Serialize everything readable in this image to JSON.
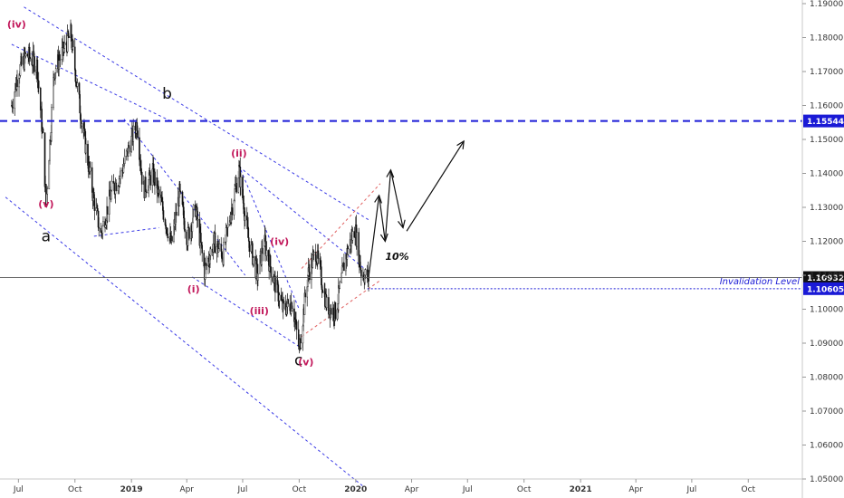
{
  "chart_data": {
    "type": "candlestick",
    "symbol_hint": "EURUSD",
    "y_axis": {
      "min": 1.05,
      "max": 1.19,
      "ticks": [
        "1.19000",
        "1.18000",
        "1.17000",
        "1.16000",
        "1.15000",
        "1.14000",
        "1.13000",
        "1.12000",
        "1.11000",
        "1.10000",
        "1.09000",
        "1.08000",
        "1.07000",
        "1.06000",
        "1.05000"
      ],
      "position": "right"
    },
    "x_axis": {
      "labels": [
        "Jul",
        "Oct",
        "2019",
        "Apr",
        "Jul",
        "Oct",
        "2020",
        "Apr",
        "Jul",
        "Oct",
        "2021",
        "Apr",
        "Jul",
        "Oct"
      ],
      "bold_labels": [
        "2019",
        "2020",
        "2021"
      ],
      "start": "2018-06",
      "end": "2021-12"
    },
    "price_series": [
      [
        "2018-06-20",
        1.16
      ],
      [
        "2018-07-01",
        1.17
      ],
      [
        "2018-07-15",
        1.175
      ],
      [
        "2018-07-31",
        1.172
      ],
      [
        "2018-08-10",
        1.15
      ],
      [
        "2018-08-15",
        1.131
      ],
      [
        "2018-08-28",
        1.17
      ],
      [
        "2018-09-24",
        1.181
      ],
      [
        "2018-10-10",
        1.158
      ],
      [
        "2018-10-31",
        1.133
      ],
      [
        "2018-11-12",
        1.122
      ],
      [
        "2018-11-30",
        1.135
      ],
      [
        "2018-12-15",
        1.14
      ],
      [
        "2019-01-10",
        1.155
      ],
      [
        "2019-01-20",
        1.135
      ],
      [
        "2019-02-05",
        1.14
      ],
      [
        "2019-02-20",
        1.13
      ],
      [
        "2019-03-07",
        1.119
      ],
      [
        "2019-03-20",
        1.134
      ],
      [
        "2019-04-02",
        1.121
      ],
      [
        "2019-04-15",
        1.13
      ],
      [
        "2019-04-30",
        1.111
      ],
      [
        "2019-05-15",
        1.12
      ],
      [
        "2019-05-30",
        1.116
      ],
      [
        "2019-06-10",
        1.127
      ],
      [
        "2019-06-25",
        1.141
      ],
      [
        "2019-07-10",
        1.121
      ],
      [
        "2019-07-25",
        1.11
      ],
      [
        "2019-08-05",
        1.12
      ],
      [
        "2019-08-20",
        1.109
      ],
      [
        "2019-09-05",
        1.1
      ],
      [
        "2019-09-20",
        1.102
      ],
      [
        "2019-10-01",
        1.088
      ],
      [
        "2019-10-15",
        1.11
      ],
      [
        "2019-10-28",
        1.117
      ],
      [
        "2019-11-15",
        1.101
      ],
      [
        "2019-11-29",
        1.099
      ],
      [
        "2019-12-15",
        1.115
      ],
      [
        "2019-12-31",
        1.124
      ],
      [
        "2020-01-10",
        1.111
      ],
      [
        "2020-01-22",
        1.109
      ]
    ],
    "horizontal_levels": [
      {
        "value": 1.15544,
        "label": "1.15544",
        "style": "dashed-bold",
        "color": "#1a1ad6"
      },
      {
        "value": 1.10932,
        "label": "1.10932",
        "style": "solid",
        "color": "#555555"
      },
      {
        "value": 1.10605,
        "label": "1.10605",
        "style": "dotted",
        "color": "#1a1ad6",
        "annotation": "Invalidation Level"
      }
    ],
    "wave_labels": [
      {
        "text": "(iv)",
        "date": "2018-06-28",
        "price": 1.183,
        "color": "#c2185b"
      },
      {
        "text": "(v)",
        "date": "2018-08-15",
        "price": 1.13,
        "color": "#c2185b"
      },
      {
        "text": "a",
        "date": "2018-08-15",
        "price": 1.12,
        "color": "#111111"
      },
      {
        "text": "b",
        "date": "2019-02-28",
        "price": 1.162,
        "color": "#111111"
      },
      {
        "text": "(ii)",
        "date": "2019-06-25",
        "price": 1.145,
        "color": "#c2185b"
      },
      {
        "text": "(iv)",
        "date": "2019-08-30",
        "price": 1.119,
        "color": "#c2185b"
      },
      {
        "text": "(i)",
        "date": "2019-04-12",
        "price": 1.105,
        "color": "#c2185b"
      },
      {
        "text": "(iii)",
        "date": "2019-07-28",
        "price": 1.0985,
        "color": "#c2185b"
      },
      {
        "text": "c",
        "date": "2019-09-30",
        "price": 1.0835,
        "color": "#111111"
      },
      {
        "text": "(v)",
        "date": "2019-10-12",
        "price": 1.0835,
        "color": "#c2185b"
      }
    ],
    "annotations": [
      {
        "text": "10%",
        "date": "2020-02-18",
        "price": 1.1145
      }
    ],
    "projection_path": [
      [
        "2020-01-22",
        1.1095
      ],
      [
        "2020-02-08",
        1.1335
      ],
      [
        "2020-02-18",
        1.12
      ],
      [
        "2020-02-27",
        1.141
      ],
      [
        "2020-03-18",
        1.124
      ]
    ],
    "projection_final": [
      [
        "2020-03-24",
        1.123
      ],
      [
        "2020-06-25",
        1.1495
      ]
    ]
  }
}
